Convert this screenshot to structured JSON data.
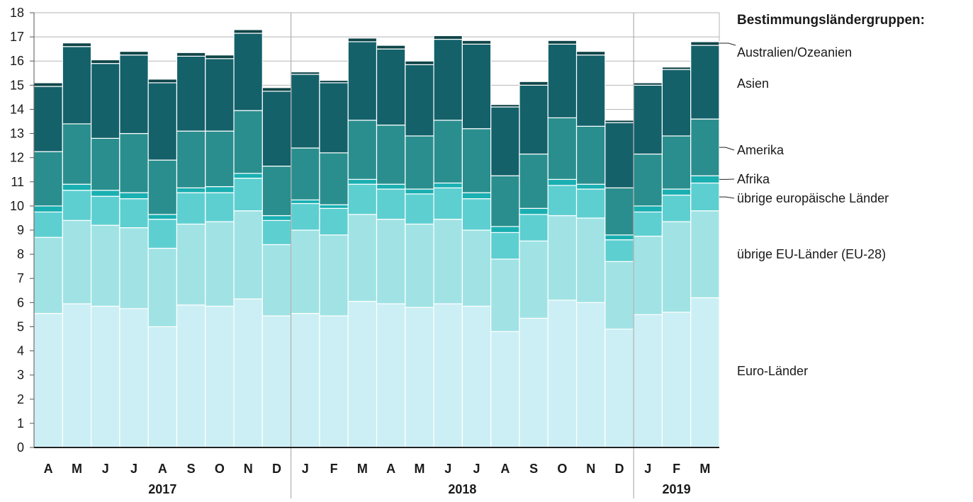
{
  "chart_data": {
    "type": "bar",
    "stacked": true,
    "title": "",
    "xlabel": "",
    "ylabel": "",
    "ylim": [
      0,
      18
    ],
    "yticks": [
      0,
      1,
      2,
      3,
      4,
      5,
      6,
      7,
      8,
      9,
      10,
      11,
      12,
      13,
      14,
      15,
      16,
      17,
      18
    ],
    "grid": true,
    "legend_title": "Bestimmungsländergruppen:",
    "legend_placement": "right",
    "categories": [
      "A",
      "M",
      "J",
      "J",
      "A",
      "S",
      "O",
      "N",
      "D",
      "J",
      "F",
      "M",
      "A",
      "M",
      "J",
      "J",
      "A",
      "S",
      "O",
      "N",
      "D",
      "J",
      "F",
      "M"
    ],
    "year_groups": [
      {
        "label": "2017",
        "count": 9
      },
      {
        "label": "2018",
        "count": 12
      },
      {
        "label": "2019",
        "count": 3
      }
    ],
    "series": [
      {
        "name": "Euro-Länder",
        "color": "#cbeff4",
        "values": [
          5.55,
          5.95,
          5.85,
          5.75,
          5.0,
          5.9,
          5.85,
          6.15,
          5.45,
          5.55,
          5.45,
          6.05,
          5.95,
          5.8,
          5.95,
          5.85,
          4.8,
          5.35,
          6.1,
          6.0,
          4.9,
          5.5,
          5.6,
          6.2
        ]
      },
      {
        "name": "übrige EU-Länder (EU-28)",
        "color": "#a1e3e5",
        "values": [
          3.15,
          3.45,
          3.35,
          3.35,
          3.25,
          3.35,
          3.5,
          3.65,
          2.95,
          3.45,
          3.35,
          3.6,
          3.5,
          3.45,
          3.5,
          3.15,
          3.0,
          3.2,
          3.5,
          3.5,
          2.8,
          3.25,
          3.75,
          3.6
        ]
      },
      {
        "name": "übrige europäische Länder",
        "color": "#5ecfd1",
        "values": [
          1.05,
          1.25,
          1.2,
          1.2,
          1.2,
          1.3,
          1.2,
          1.35,
          1.0,
          1.1,
          1.1,
          1.25,
          1.25,
          1.25,
          1.3,
          1.3,
          1.1,
          1.1,
          1.25,
          1.2,
          0.9,
          1.0,
          1.1,
          1.15
        ]
      },
      {
        "name": "Afrika",
        "color": "#1ab0b2",
        "values": [
          0.25,
          0.25,
          0.25,
          0.25,
          0.2,
          0.2,
          0.25,
          0.2,
          0.2,
          0.15,
          0.15,
          0.2,
          0.2,
          0.2,
          0.2,
          0.25,
          0.25,
          0.25,
          0.25,
          0.2,
          0.2,
          0.25,
          0.25,
          0.3
        ]
      },
      {
        "name": "Amerika",
        "color": "#2a8e8e",
        "values": [
          2.25,
          2.5,
          2.15,
          2.45,
          2.25,
          2.35,
          2.3,
          2.6,
          2.05,
          2.15,
          2.15,
          2.45,
          2.45,
          2.2,
          2.6,
          2.65,
          2.1,
          2.25,
          2.55,
          2.4,
          1.95,
          2.15,
          2.2,
          2.35
        ]
      },
      {
        "name": "Asien",
        "color": "#14616a",
        "values": [
          2.7,
          3.2,
          3.1,
          3.25,
          3.2,
          3.1,
          3.0,
          3.2,
          3.1,
          3.05,
          2.9,
          3.25,
          3.15,
          2.95,
          3.35,
          3.5,
          2.85,
          2.85,
          3.05,
          2.95,
          2.7,
          2.85,
          2.75,
          3.05
        ]
      },
      {
        "name": "Australien/Ozeanien",
        "color": "#0f4548",
        "values": [
          0.15,
          0.15,
          0.15,
          0.15,
          0.15,
          0.15,
          0.15,
          0.15,
          0.15,
          0.1,
          0.1,
          0.15,
          0.15,
          0.15,
          0.15,
          0.15,
          0.1,
          0.15,
          0.15,
          0.15,
          0.1,
          0.1,
          0.1,
          0.15
        ]
      }
    ]
  }
}
